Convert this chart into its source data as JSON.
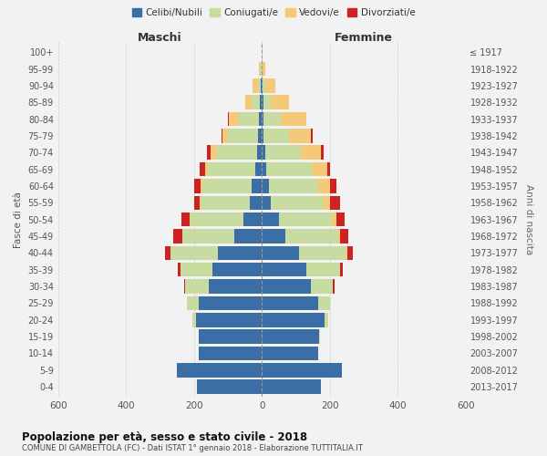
{
  "age_groups": [
    "0-4",
    "5-9",
    "10-14",
    "15-19",
    "20-24",
    "25-29",
    "30-34",
    "35-39",
    "40-44",
    "45-49",
    "50-54",
    "55-59",
    "60-64",
    "65-69",
    "70-74",
    "75-79",
    "80-84",
    "85-89",
    "90-94",
    "95-99",
    "100+"
  ],
  "birth_years": [
    "2013-2017",
    "2008-2012",
    "2003-2007",
    "1998-2002",
    "1993-1997",
    "1988-1992",
    "1983-1987",
    "1978-1982",
    "1973-1977",
    "1968-1972",
    "1963-1967",
    "1958-1962",
    "1953-1957",
    "1948-1952",
    "1943-1947",
    "1938-1942",
    "1933-1937",
    "1928-1932",
    "1923-1927",
    "1918-1922",
    "≤ 1917"
  ],
  "colors": {
    "celibi": "#3a6ea5",
    "coniugati": "#c8dba0",
    "vedovi": "#f5c97a",
    "divorziati": "#cc2222"
  },
  "males": {
    "celibi": [
      190,
      250,
      185,
      185,
      195,
      185,
      155,
      145,
      130,
      80,
      55,
      35,
      30,
      20,
      15,
      10,
      8,
      5,
      2,
      0,
      0
    ],
    "coniugati": [
      0,
      0,
      0,
      2,
      10,
      35,
      70,
      95,
      140,
      155,
      155,
      145,
      145,
      140,
      120,
      90,
      60,
      25,
      10,
      3,
      0
    ],
    "vedovi": [
      0,
      0,
      0,
      0,
      0,
      0,
      0,
      0,
      0,
      0,
      2,
      2,
      5,
      8,
      15,
      15,
      30,
      20,
      15,
      5,
      0
    ],
    "divorziati": [
      0,
      0,
      0,
      0,
      0,
      2,
      5,
      8,
      15,
      25,
      25,
      18,
      20,
      15,
      12,
      5,
      2,
      0,
      0,
      0,
      0
    ]
  },
  "females": {
    "nubili": [
      175,
      235,
      165,
      170,
      185,
      165,
      145,
      130,
      110,
      70,
      50,
      25,
      20,
      12,
      10,
      5,
      5,
      5,
      2,
      0,
      0
    ],
    "coniugate": [
      0,
      0,
      0,
      2,
      10,
      35,
      65,
      100,
      140,
      155,
      155,
      155,
      145,
      135,
      105,
      75,
      50,
      20,
      8,
      2,
      0
    ],
    "vedove": [
      0,
      0,
      0,
      0,
      0,
      0,
      0,
      0,
      2,
      5,
      15,
      20,
      35,
      45,
      60,
      65,
      75,
      55,
      30,
      8,
      0
    ],
    "divorziate": [
      0,
      0,
      0,
      0,
      0,
      2,
      5,
      8,
      15,
      25,
      25,
      30,
      20,
      10,
      8,
      5,
      2,
      0,
      0,
      0,
      0
    ]
  },
  "xlim": 600,
  "xticks": [
    -600,
    -400,
    -200,
    0,
    200,
    400,
    600
  ],
  "xticklabels": [
    "600",
    "400",
    "200",
    "0",
    "200",
    "400",
    "600"
  ],
  "title": "Popolazione per età, sesso e stato civile - 2018",
  "subtitle": "COMUNE DI GAMBETTOLA (FC) - Dati ISTAT 1° gennaio 2018 - Elaborazione TUTTITALIA.IT",
  "ylabel": "Fasce di età",
  "ylabel_right": "Anni di nascita",
  "label_maschi": "Maschi",
  "label_femmine": "Femmine",
  "legend_labels": [
    "Celibi/Nubili",
    "Coniugati/e",
    "Vedovi/e",
    "Divorziati/e"
  ],
  "background_color": "#f2f2f2",
  "bar_height": 0.85
}
